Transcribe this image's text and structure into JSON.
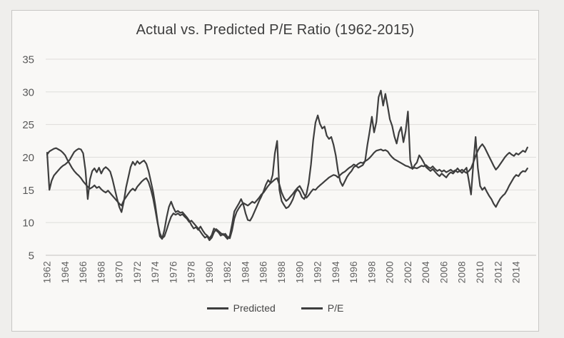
{
  "page": {
    "background": "#efeeec",
    "card_background": "#f9f8f6",
    "card_border": "#c8c7c5"
  },
  "chart_data": {
    "type": "line",
    "title": "Actual vs. Predicted P/E Ratio (1962-2015)",
    "xlabel": "",
    "ylabel": "",
    "ylim": [
      5,
      35
    ],
    "grid": "horizontal",
    "legend_position": "bottom",
    "x_start": 1962,
    "x_step": 0.25,
    "y_ticks": [
      35,
      30,
      25,
      20,
      15,
      10,
      5
    ],
    "x_tick_labels": [
      "1962",
      "1964",
      "1966",
      "1968",
      "1970",
      "1972",
      "1974",
      "1976",
      "1978",
      "1980",
      "1982",
      "1984",
      "1986",
      "1988",
      "1990",
      "1992",
      "1994",
      "1996",
      "1998",
      "2000",
      "2002",
      "2004",
      "2006",
      "2008",
      "2010",
      "2012",
      "2014"
    ],
    "colors": {
      "line": "#3e3e3e",
      "gridline": "#dedddb",
      "axis_line": "#c2c1bf",
      "tick_text": "#595959",
      "title_text": "#3d3d3d"
    },
    "legend": [
      {
        "name": "Predicted",
        "color": "#3e3e3e"
      },
      {
        "name": "P/E",
        "color": "#3e3e3e"
      }
    ],
    "series": [
      {
        "name": "Predicted",
        "values": [
          20.4,
          20.9,
          21.1,
          21.3,
          21.4,
          21.2,
          21.0,
          20.7,
          20.3,
          19.6,
          19.0,
          18.4,
          17.9,
          17.5,
          17.2,
          16.8,
          16.3,
          15.9,
          15.5,
          15.2,
          15.4,
          15.7,
          15.3,
          15.5,
          15.1,
          14.8,
          14.6,
          14.9,
          14.5,
          14.1,
          13.7,
          13.3,
          12.9,
          12.6,
          13.4,
          13.9,
          14.4,
          14.9,
          15.2,
          14.9,
          15.5,
          15.9,
          16.3,
          16.6,
          16.8,
          16.2,
          15.1,
          13.7,
          11.9,
          9.9,
          8.4,
          7.6,
          7.9,
          8.9,
          10.0,
          10.9,
          11.4,
          11.2,
          11.4,
          11.1,
          11.3,
          10.9,
          10.6,
          10.1,
          10.3,
          9.9,
          9.5,
          9.1,
          8.6,
          8.1,
          7.7,
          7.9,
          7.3,
          7.7,
          8.5,
          9.0,
          8.7,
          8.4,
          8.1,
          8.3,
          7.8,
          7.6,
          8.8,
          10.6,
          11.6,
          12.2,
          12.7,
          13.0,
          12.8,
          12.6,
          12.9,
          13.2,
          13.0,
          13.4,
          13.8,
          14.3,
          14.6,
          15.1,
          15.6,
          16.0,
          16.3,
          16.6,
          16.8,
          15.8,
          14.6,
          13.8,
          13.3,
          13.6,
          14.0,
          14.4,
          14.9,
          15.3,
          15.6,
          15.0,
          14.3,
          13.8,
          14.2,
          14.7,
          15.1,
          15.0,
          15.4,
          15.7,
          16.0,
          16.3,
          16.6,
          16.9,
          17.1,
          17.3,
          17.2,
          16.9,
          17.3,
          17.6,
          17.8,
          18.1,
          18.4,
          18.6,
          18.9,
          18.7,
          19.0,
          19.2,
          19.1,
          19.4,
          19.6,
          19.9,
          20.3,
          20.7,
          21.0,
          21.1,
          21.2,
          21.0,
          21.1,
          20.9,
          20.4,
          20.0,
          19.7,
          19.5,
          19.3,
          19.1,
          18.9,
          18.7,
          18.6,
          18.4,
          18.3,
          18.4,
          18.3,
          18.5,
          18.7,
          18.6,
          18.8,
          18.5,
          18.3,
          18.6,
          18.2,
          17.9,
          18.1,
          17.8,
          18.0,
          17.7,
          17.9,
          18.1,
          17.8,
          18.0,
          17.7,
          17.9,
          18.1,
          17.8,
          17.6,
          17.9,
          18.3,
          19.2,
          20.2,
          21.0,
          21.6,
          22.0,
          21.5,
          20.8,
          20.1,
          19.4,
          18.7,
          18.1,
          18.5,
          19.0,
          19.5,
          20.0,
          20.4,
          20.7,
          20.4,
          20.2,
          20.6,
          20.4,
          20.7,
          21.0,
          20.8,
          21.5
        ]
      },
      {
        "name": "P/E",
        "values": [
          20.7,
          15.0,
          16.4,
          17.2,
          17.6,
          18.0,
          18.4,
          18.7,
          18.9,
          19.2,
          19.6,
          20.2,
          20.8,
          21.1,
          21.3,
          21.2,
          20.6,
          18.0,
          13.6,
          16.6,
          17.9,
          18.3,
          17.7,
          18.4,
          17.5,
          18.2,
          18.5,
          18.2,
          17.8,
          16.6,
          15.1,
          13.7,
          12.4,
          11.6,
          13.2,
          15.4,
          16.9,
          18.5,
          19.3,
          18.8,
          19.4,
          19.0,
          19.3,
          19.5,
          19.0,
          17.9,
          16.3,
          14.7,
          12.6,
          10.1,
          7.9,
          7.5,
          8.9,
          10.8,
          12.4,
          13.2,
          12.3,
          11.6,
          11.8,
          11.5,
          11.6,
          11.2,
          10.8,
          10.3,
          9.6,
          9.1,
          9.3,
          8.9,
          9.4,
          8.8,
          8.3,
          8.0,
          7.6,
          8.1,
          9.1,
          8.8,
          8.5,
          8.0,
          8.3,
          7.9,
          7.5,
          8.0,
          9.7,
          11.7,
          12.3,
          12.9,
          13.6,
          12.8,
          11.4,
          10.4,
          10.3,
          10.9,
          11.7,
          12.5,
          13.3,
          14.0,
          14.8,
          15.8,
          16.5,
          16.1,
          17.3,
          20.6,
          22.5,
          15.0,
          13.3,
          12.7,
          12.2,
          12.4,
          12.9,
          13.6,
          14.6,
          15.1,
          14.7,
          13.9,
          13.6,
          14.4,
          16.1,
          18.9,
          22.6,
          25.3,
          26.4,
          25.1,
          24.4,
          24.7,
          23.3,
          22.8,
          23.1,
          21.9,
          20.3,
          17.9,
          16.3,
          15.6,
          16.3,
          17.0,
          17.5,
          17.9,
          18.5,
          18.7,
          18.4,
          18.6,
          18.8,
          19.4,
          21.8,
          23.9,
          26.2,
          23.8,
          25.4,
          29.2,
          30.2,
          27.9,
          29.7,
          27.8,
          25.8,
          24.8,
          23.2,
          22.1,
          23.8,
          24.6,
          22.3,
          24.0,
          27.0,
          19.6,
          18.2,
          18.8,
          19.2,
          20.3,
          19.8,
          19.2,
          18.5,
          18.2,
          17.9,
          18.2,
          17.8,
          17.4,
          17.1,
          17.5,
          17.2,
          16.9,
          17.4,
          17.7,
          17.5,
          17.9,
          18.3,
          17.9,
          17.6,
          18.0,
          18.4,
          16.4,
          14.3,
          19.0,
          23.1,
          18.4,
          15.6,
          15.0,
          15.4,
          14.7,
          14.1,
          13.6,
          12.9,
          12.4,
          13.1,
          13.7,
          14.1,
          14.4,
          15.0,
          15.7,
          16.3,
          16.9,
          17.3,
          17.1,
          17.6,
          17.9,
          17.8,
          18.3
        ]
      }
    ]
  }
}
